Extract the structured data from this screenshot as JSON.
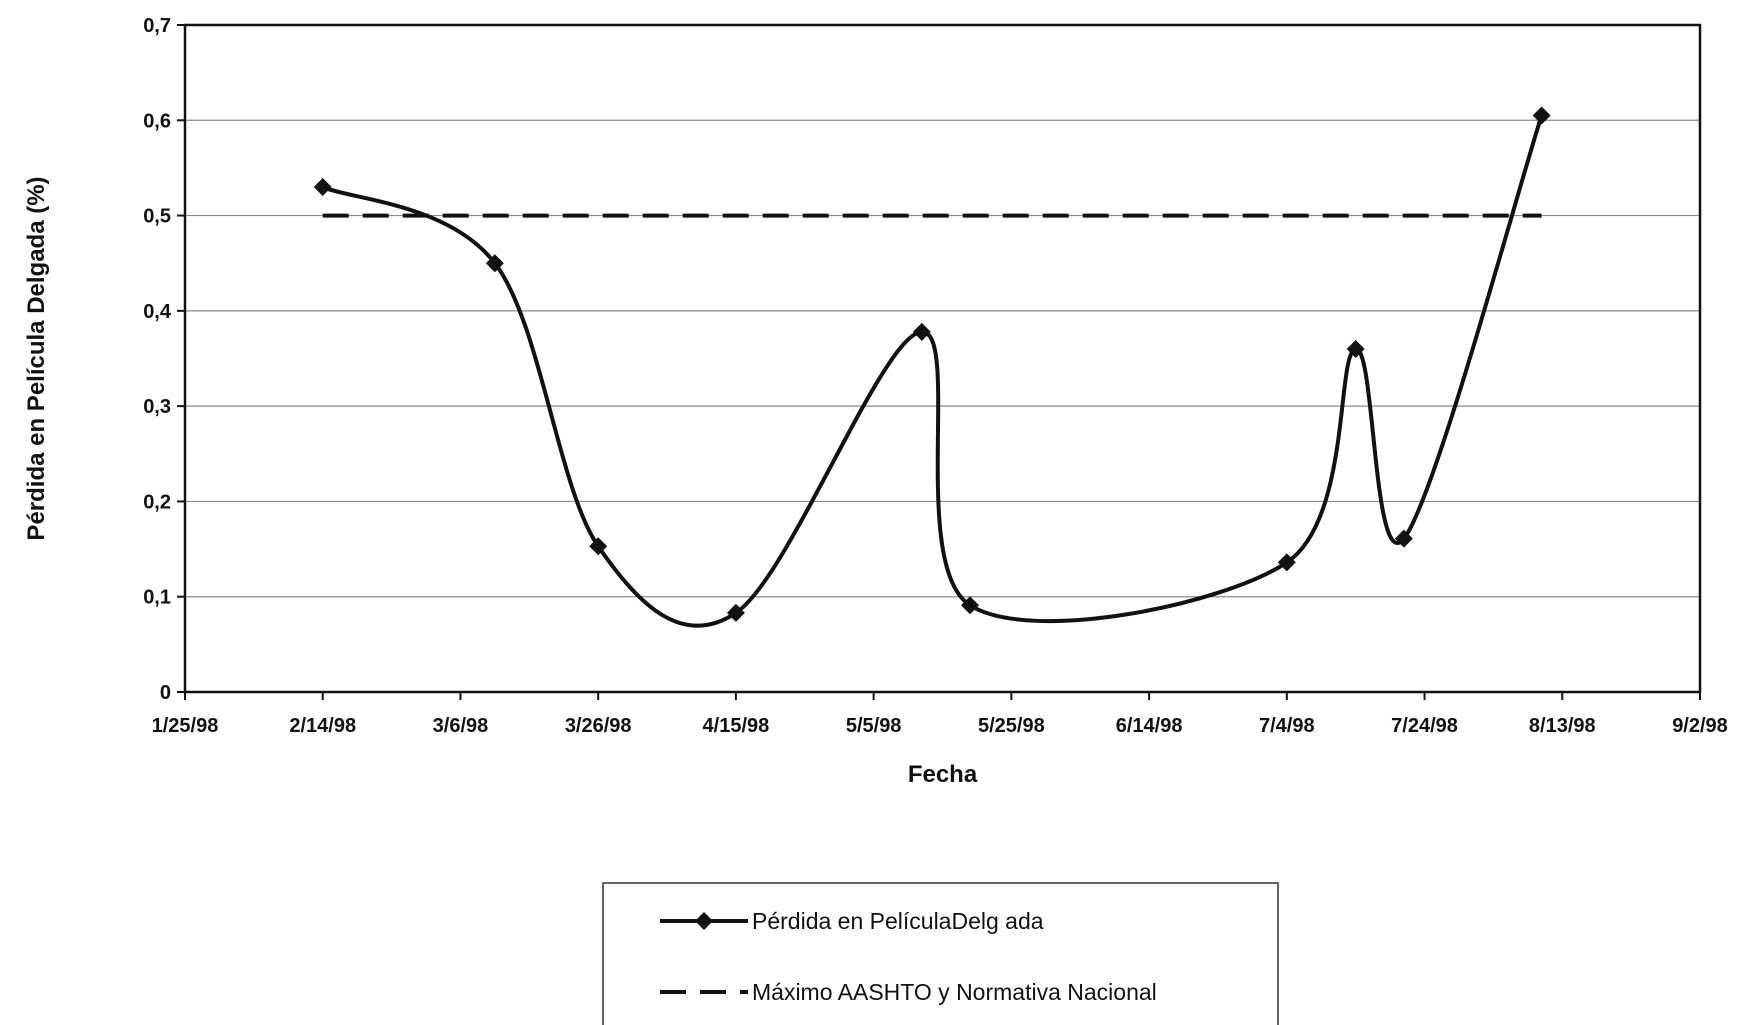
{
  "chart_data": {
    "type": "line",
    "title": "",
    "xlabel": "Fecha",
    "ylabel": "Pérdida en Película Delgada (%)",
    "x_ticks": [
      "1/25/98",
      "2/14/98",
      "3/6/98",
      "3/26/98",
      "4/15/98",
      "5/5/98",
      "5/25/98",
      "6/14/98",
      "7/4/98",
      "7/24/98",
      "8/13/98",
      "9/2/98"
    ],
    "xlim": [
      "1998-01-25",
      "1998-09-02"
    ],
    "y_ticks": [
      "0",
      "0,1",
      "0,2",
      "0,3",
      "0,4",
      "0,5",
      "0,6",
      "0,7"
    ],
    "ylim": [
      0,
      0.7
    ],
    "grid": "horizontal",
    "legend_position": "bottom-center",
    "series": [
      {
        "name": "Pérdida en PelículaDelg ada",
        "style": "solid-smooth-diamond",
        "color": "#111111",
        "points": [
          {
            "x": "1998-02-14",
            "y": 0.53
          },
          {
            "x": "1998-03-11",
            "y": 0.45
          },
          {
            "x": "1998-03-26",
            "y": 0.153
          },
          {
            "x": "1998-04-15",
            "y": 0.083
          },
          {
            "x": "1998-05-12",
            "y": 0.378
          },
          {
            "x": "1998-05-19",
            "y": 0.091
          },
          {
            "x": "1998-07-04",
            "y": 0.136
          },
          {
            "x": "1998-07-14",
            "y": 0.36
          },
          {
            "x": "1998-07-21",
            "y": 0.161
          },
          {
            "x": "1998-08-10",
            "y": 0.605
          }
        ]
      },
      {
        "name": "Máximo AASHTO y Normativa Nacional",
        "style": "dashed",
        "color": "#111111",
        "points": [
          {
            "x": "1998-02-14",
            "y": 0.5
          },
          {
            "x": "1998-08-10",
            "y": 0.5
          }
        ]
      }
    ]
  }
}
